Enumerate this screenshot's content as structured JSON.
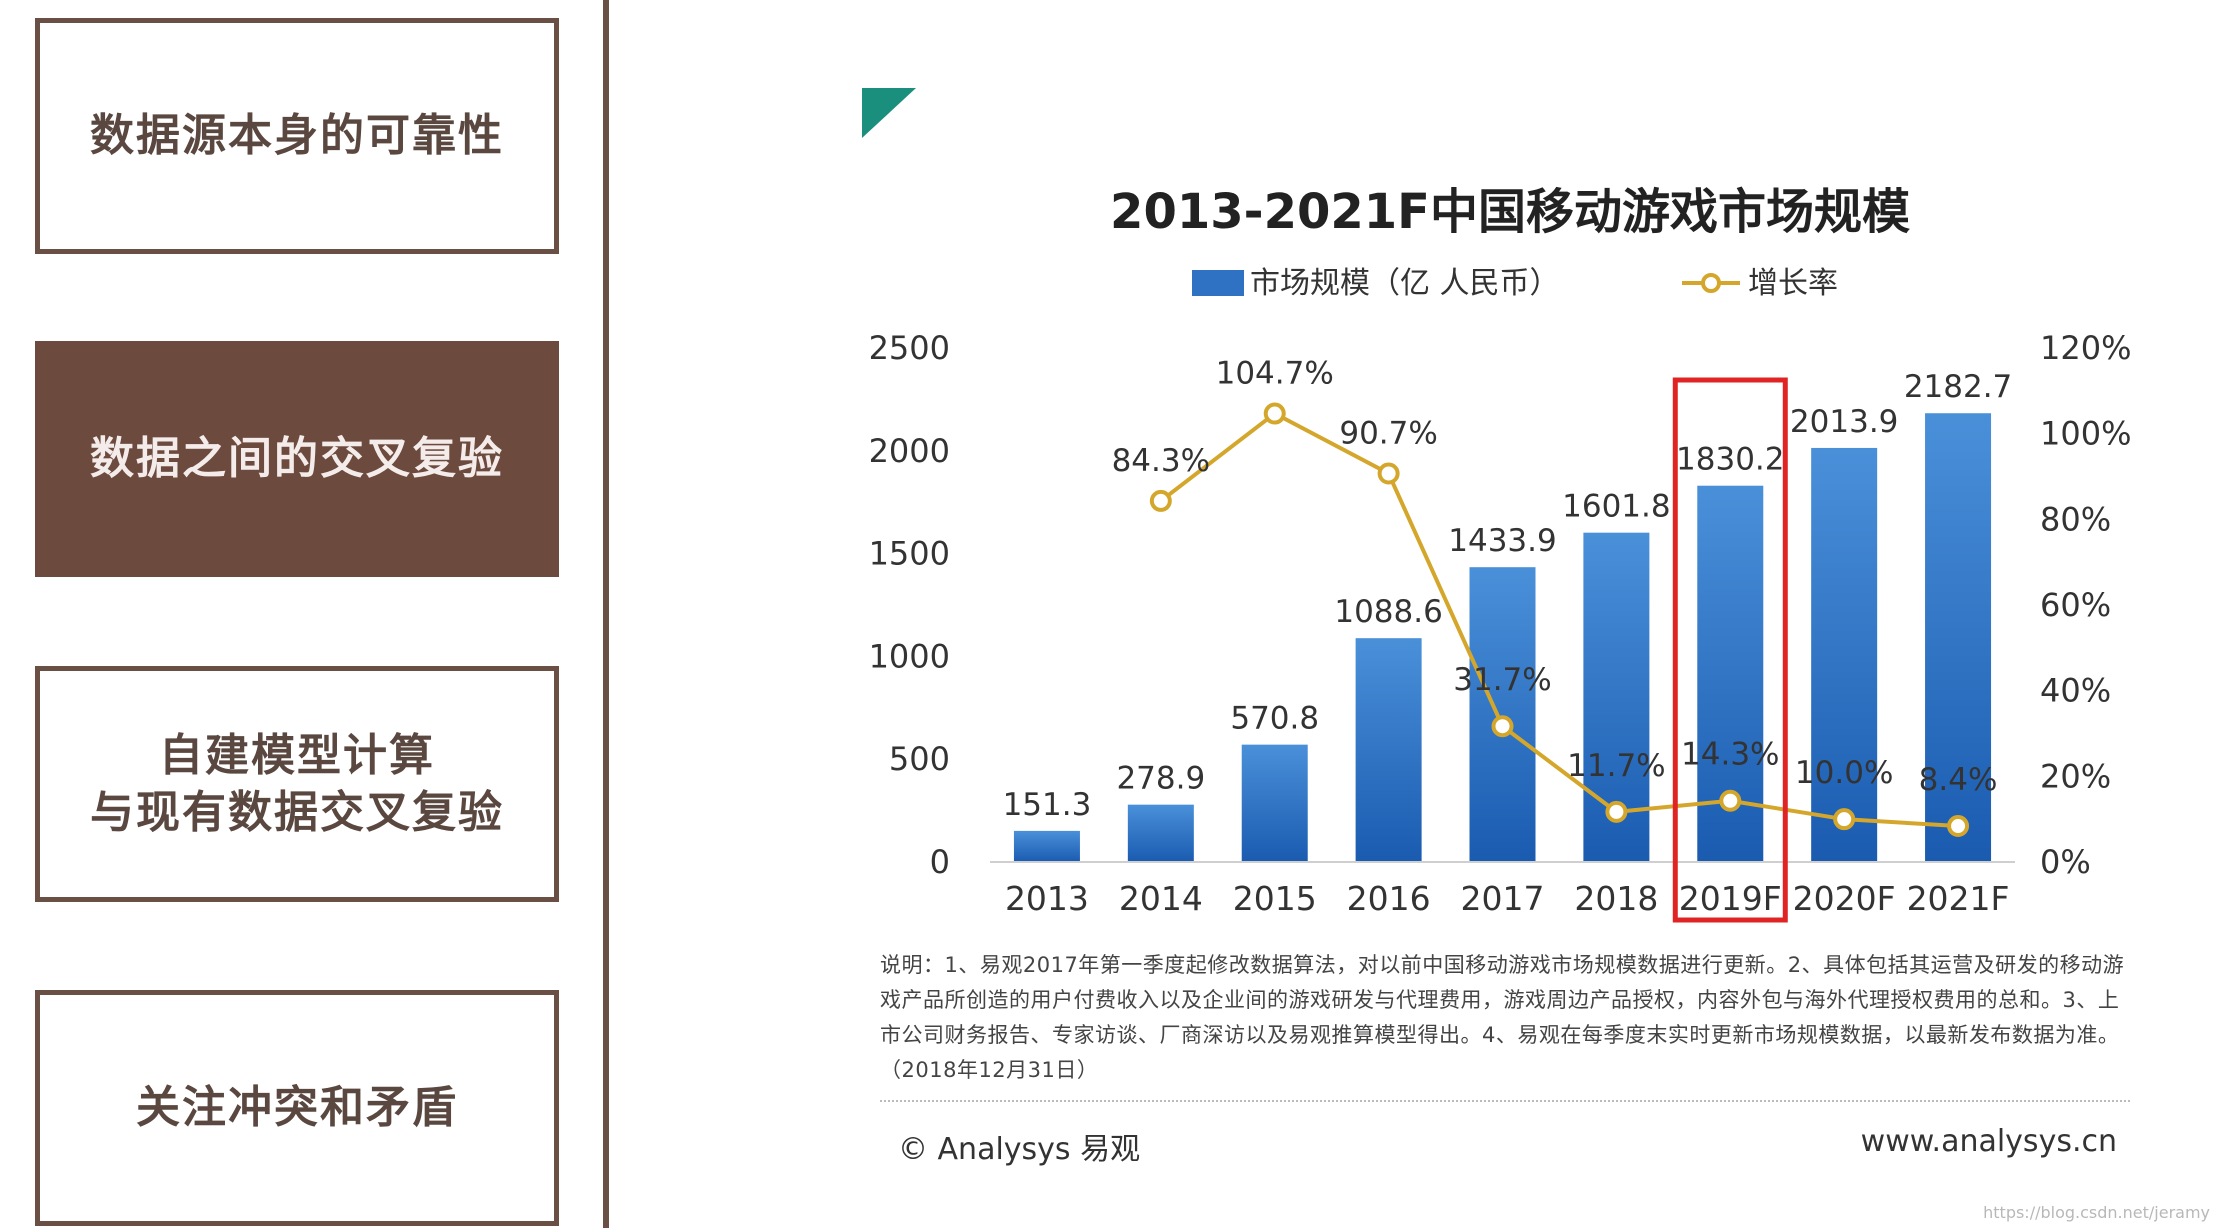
{
  "side_panel": {
    "items": [
      {
        "label": "数据源本身的可靠性",
        "active": false
      },
      {
        "label": "数据之间的交叉复验",
        "active": true
      },
      {
        "label": "自建模型计算\n与现有数据交叉复验",
        "active": false
      },
      {
        "label": "关注冲突和矛盾",
        "active": false
      }
    ]
  },
  "chart_data": {
    "type": "bar",
    "title": "2013-2021F中国移动游戏市场规模",
    "categories": [
      "2013",
      "2014",
      "2015",
      "2016",
      "2017",
      "2018",
      "2019F",
      "2020F",
      "2021F"
    ],
    "series": [
      {
        "name": "市场规模（亿 人民币）",
        "type": "bar",
        "axis": "left",
        "values": [
          151.3,
          278.9,
          570.8,
          1088.6,
          1433.9,
          1601.8,
          1830.2,
          2013.9,
          2182.7
        ],
        "labels": [
          "151.3",
          "278.9",
          "570.8",
          "1088.6",
          "1433.9",
          "1601.8",
          "1830.2",
          "2013.9",
          "2182.7"
        ]
      },
      {
        "name": "增长率",
        "type": "line",
        "axis": "right",
        "values": [
          null,
          84.3,
          104.7,
          90.7,
          31.7,
          11.7,
          14.3,
          10.0,
          8.4
        ],
        "labels": [
          "",
          "84.3%",
          "104.7%",
          "90.7%",
          "31.7%",
          "11.7%",
          "14.3%",
          "10.0%",
          "8.4%"
        ]
      }
    ],
    "y_left": {
      "range": [
        0,
        2500
      ],
      "ticks": [
        "0",
        "500",
        "1000",
        "1500",
        "2000",
        "2500"
      ]
    },
    "y_right": {
      "range": [
        0,
        120
      ],
      "ticks": [
        "0%",
        "20%",
        "40%",
        "60%",
        "80%",
        "100%",
        "120%"
      ]
    },
    "highlight_category": "2019F",
    "legend_position": "top-center",
    "grid": false,
    "colors": {
      "bar_top": "#4a90d9",
      "bar_bottom": "#1a5bb0",
      "line": "#d4a72c",
      "highlight": "#e02424",
      "logo": "#1a8f7e"
    }
  },
  "note": "说明：1、易观2017年第一季度起修改数据算法，对以前中国移动游戏市场规模数据进行更新。2、具体包括其运营及研发的移动游戏产品所创造的用户付费收入以及企业间的游戏研发与代理费用，游戏周边产品授权，内容外包与海外代理授权费用的总和。3、上市公司财务报告、专家访谈、厂商深访以及易观推算模型得出。4、易观在每季度末实时更新市场规模数据，以最新发布数据为准。（2018年12月31日）",
  "footer": {
    "left": "© Analysys 易观",
    "right": "www.analysys.cn"
  },
  "watermark": "https://blog.csdn.net/jeramy"
}
